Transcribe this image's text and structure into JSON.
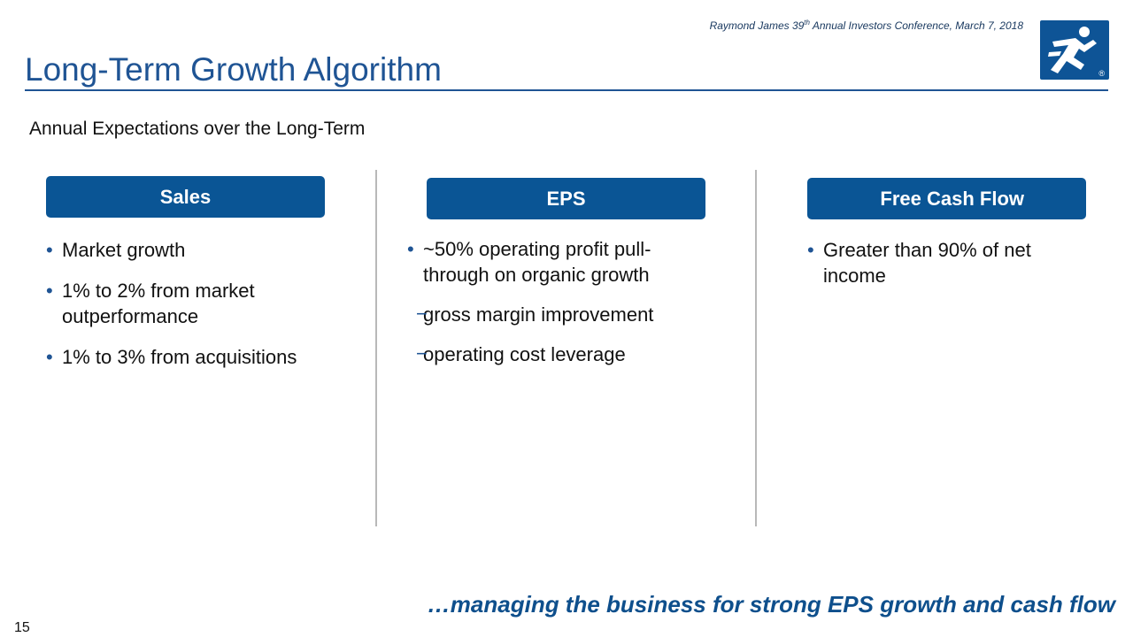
{
  "header": {
    "conference_prefix": "Raymond James 39",
    "conference_sup": "th",
    "conference_suffix": " Annual Investors Conference, March 7, 2018",
    "title": "Long-Term Growth Algorithm",
    "logo_icon": "runner-logo-icon",
    "logo_mark": "®"
  },
  "subtitle": "Annual Expectations over the Long-Term",
  "columns": [
    {
      "label": "Sales",
      "bullets": [
        "Market growth",
        "1% to 2% from market outperformance",
        "1% to 3% from acquisitions"
      ]
    },
    {
      "label": "EPS",
      "bullets": [
        "~50% operating profit pull-through on organic growth"
      ],
      "sub_bullets": [
        "gross margin improvement",
        "operating cost leverage"
      ]
    },
    {
      "label": "Free Cash Flow",
      "bullets": [
        "Greater than 90% of net income"
      ]
    }
  ],
  "bullet_glyph": "•",
  "dash_glyph": "−",
  "tagline": "…managing the business for strong EPS growth and cash flow",
  "page_number": "15",
  "colors": {
    "brand_blue": "#0a5595",
    "title_blue": "#1f5494",
    "divider": "#b8b8b8"
  }
}
